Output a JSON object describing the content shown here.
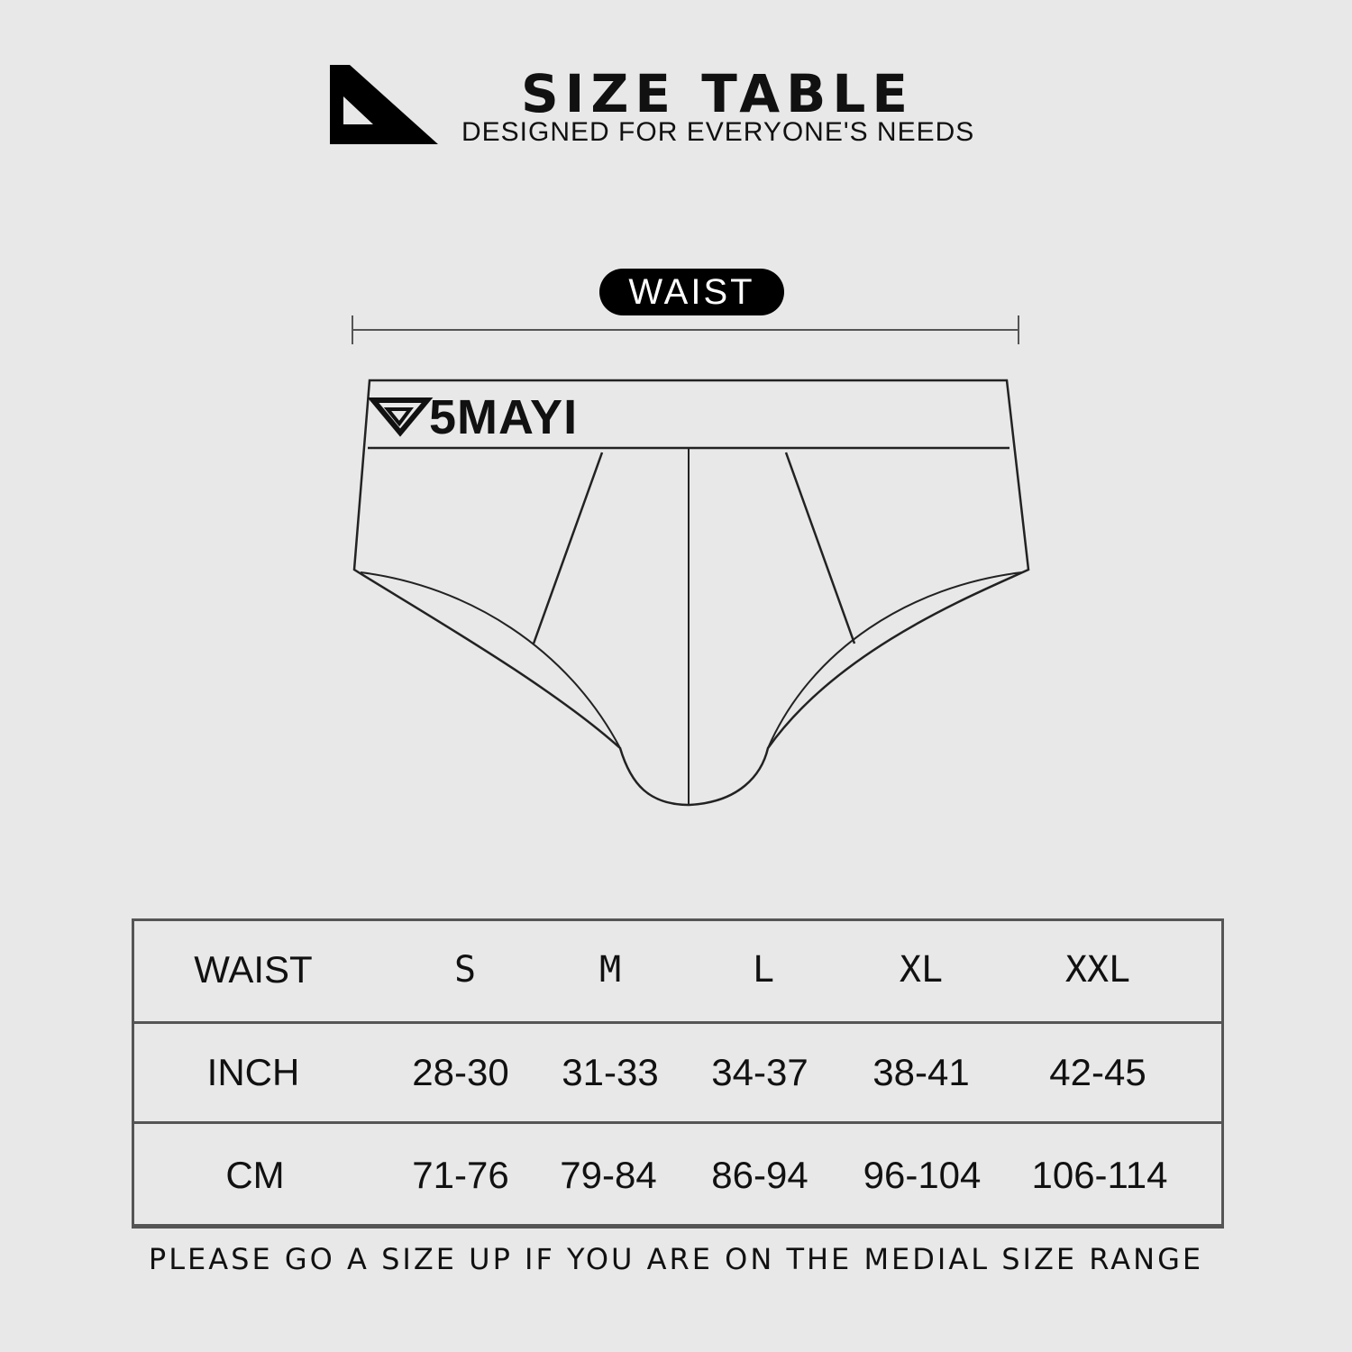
{
  "header": {
    "title": "SIZE TABLE",
    "subtitle": "DESIGNED FOR EVERYONE'S NEEDS",
    "logo_icon": "set-square-triangle-icon"
  },
  "diagram": {
    "measure_label": "WAIST",
    "brand": "5MAYI",
    "brand_mark_icon": "triangle-logo-icon"
  },
  "table": {
    "header": [
      "WAIST",
      "S",
      "M",
      "L",
      "XL",
      "XXL"
    ],
    "rows": [
      [
        "INCH",
        "28-30",
        "31-33",
        "34-37",
        "38-41",
        "42-45"
      ],
      [
        "CM",
        "71-76",
        "79-84",
        "86-94",
        "96-104",
        "106-114"
      ]
    ]
  },
  "note": "PLEASE GO A SIZE UP IF YOU ARE ON THE MEDIAL SIZE RANGE",
  "colors": {
    "background": "#e8e8e8",
    "ink": "#111111",
    "table_border": "#555555"
  }
}
